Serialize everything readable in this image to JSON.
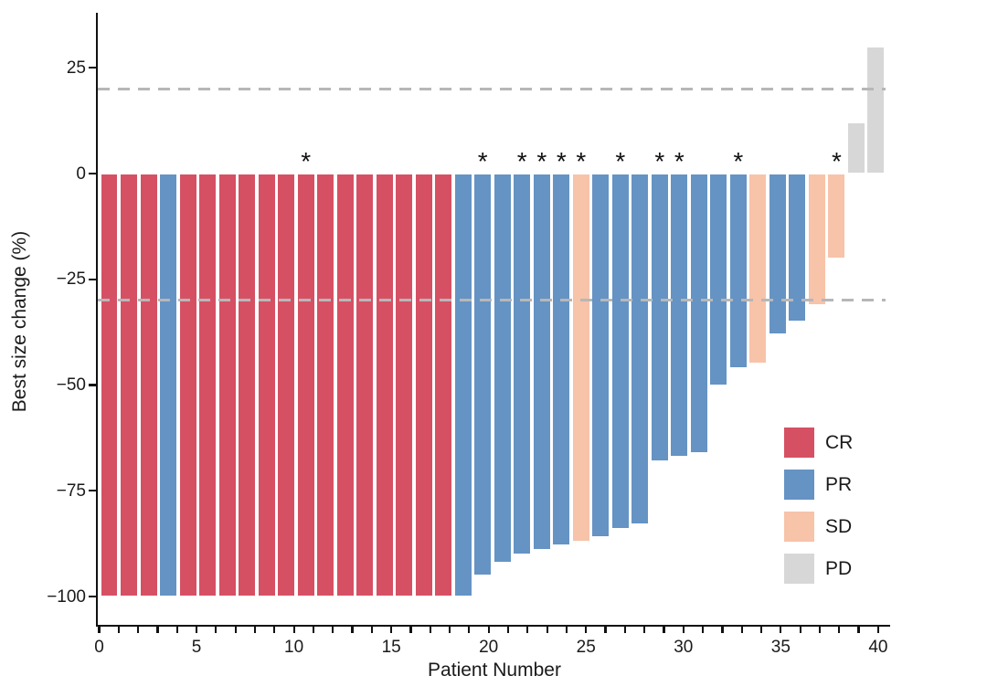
{
  "chart_data": {
    "type": "bar",
    "subtype": "waterfall-tumor-response",
    "title": "",
    "xlabel": "Patient Number",
    "ylabel": "Best size change (%)",
    "x_axis": {
      "min": 0,
      "max": 40,
      "major_tick_step": 5,
      "minor_tick_step": 1,
      "major_tick_labels": [
        "0",
        "5",
        "10",
        "15",
        "20",
        "25",
        "30",
        "35",
        "40"
      ]
    },
    "y_axis": {
      "ticks": [
        25,
        0,
        -25,
        -50,
        -75,
        -100
      ],
      "tick_labels": [
        "25",
        "0",
        "−25",
        "−50",
        "−75",
        "−100"
      ],
      "ylim": [
        -107,
        38
      ]
    },
    "grid": false,
    "reference_lines": [
      {
        "name": "progressive-disease-threshold",
        "value": 20,
        "style": "dashed",
        "color": "#b7b7b7"
      },
      {
        "name": "partial-response-threshold",
        "value": -30,
        "style": "dashed",
        "color": "#b7b7b7"
      }
    ],
    "legend": {
      "position": "inside-right",
      "entries": [
        {
          "label": "CR",
          "color": "#d65064"
        },
        {
          "label": "PR",
          "color": "#6593c4"
        },
        {
          "label": "SD",
          "color": "#f7c3a9"
        },
        {
          "label": "PD",
          "color": "#d7d7d7"
        }
      ]
    },
    "annotation_glyph": "*",
    "patients": [
      {
        "patient": 1,
        "value": -100,
        "response": "CR",
        "star": false
      },
      {
        "patient": 2,
        "value": -100,
        "response": "CR",
        "star": false
      },
      {
        "patient": 3,
        "value": -100,
        "response": "CR",
        "star": false
      },
      {
        "patient": 4,
        "value": -100,
        "response": "PR",
        "star": false
      },
      {
        "patient": 5,
        "value": -100,
        "response": "CR",
        "star": false
      },
      {
        "patient": 6,
        "value": -100,
        "response": "CR",
        "star": false
      },
      {
        "patient": 7,
        "value": -100,
        "response": "CR",
        "star": false
      },
      {
        "patient": 8,
        "value": -100,
        "response": "CR",
        "star": false
      },
      {
        "patient": 9,
        "value": -100,
        "response": "CR",
        "star": false
      },
      {
        "patient": 10,
        "value": -100,
        "response": "CR",
        "star": false
      },
      {
        "patient": 11,
        "value": -100,
        "response": "CR",
        "star": true
      },
      {
        "patient": 12,
        "value": -100,
        "response": "CR",
        "star": false
      },
      {
        "patient": 13,
        "value": -100,
        "response": "CR",
        "star": false
      },
      {
        "patient": 14,
        "value": -100,
        "response": "CR",
        "star": false
      },
      {
        "patient": 15,
        "value": -100,
        "response": "CR",
        "star": false
      },
      {
        "patient": 16,
        "value": -100,
        "response": "CR",
        "star": false
      },
      {
        "patient": 17,
        "value": -100,
        "response": "CR",
        "star": false
      },
      {
        "patient": 18,
        "value": -100,
        "response": "CR",
        "star": false
      },
      {
        "patient": 19,
        "value": -100,
        "response": "PR",
        "star": false
      },
      {
        "patient": 20,
        "value": -95,
        "response": "PR",
        "star": true
      },
      {
        "patient": 21,
        "value": -92,
        "response": "PR",
        "star": false
      },
      {
        "patient": 22,
        "value": -90,
        "response": "PR",
        "star": true
      },
      {
        "patient": 23,
        "value": -89,
        "response": "PR",
        "star": true
      },
      {
        "patient": 24,
        "value": -88,
        "response": "PR",
        "star": true
      },
      {
        "patient": 25,
        "value": -87,
        "response": "SD",
        "star": true
      },
      {
        "patient": 26,
        "value": -86,
        "response": "PR",
        "star": false
      },
      {
        "patient": 27,
        "value": -84,
        "response": "PR",
        "star": true
      },
      {
        "patient": 28,
        "value": -83,
        "response": "PR",
        "star": false
      },
      {
        "patient": 29,
        "value": -68,
        "response": "PR",
        "star": true
      },
      {
        "patient": 30,
        "value": -67,
        "response": "PR",
        "star": true
      },
      {
        "patient": 31,
        "value": -66,
        "response": "PR",
        "star": false
      },
      {
        "patient": 32,
        "value": -50,
        "response": "PR",
        "star": false
      },
      {
        "patient": 33,
        "value": -46,
        "response": "PR",
        "star": true
      },
      {
        "patient": 34,
        "value": -45,
        "response": "SD",
        "star": false
      },
      {
        "patient": 35,
        "value": -38,
        "response": "PR",
        "star": false
      },
      {
        "patient": 36,
        "value": -35,
        "response": "PR",
        "star": false
      },
      {
        "patient": 37,
        "value": -31,
        "response": "SD",
        "star": false
      },
      {
        "patient": 38,
        "value": -20,
        "response": "SD",
        "star": true
      },
      {
        "patient": 39,
        "value": 12,
        "response": "PD",
        "star": false
      },
      {
        "patient": 40,
        "value": 30,
        "response": "PD",
        "star": false
      }
    ]
  }
}
